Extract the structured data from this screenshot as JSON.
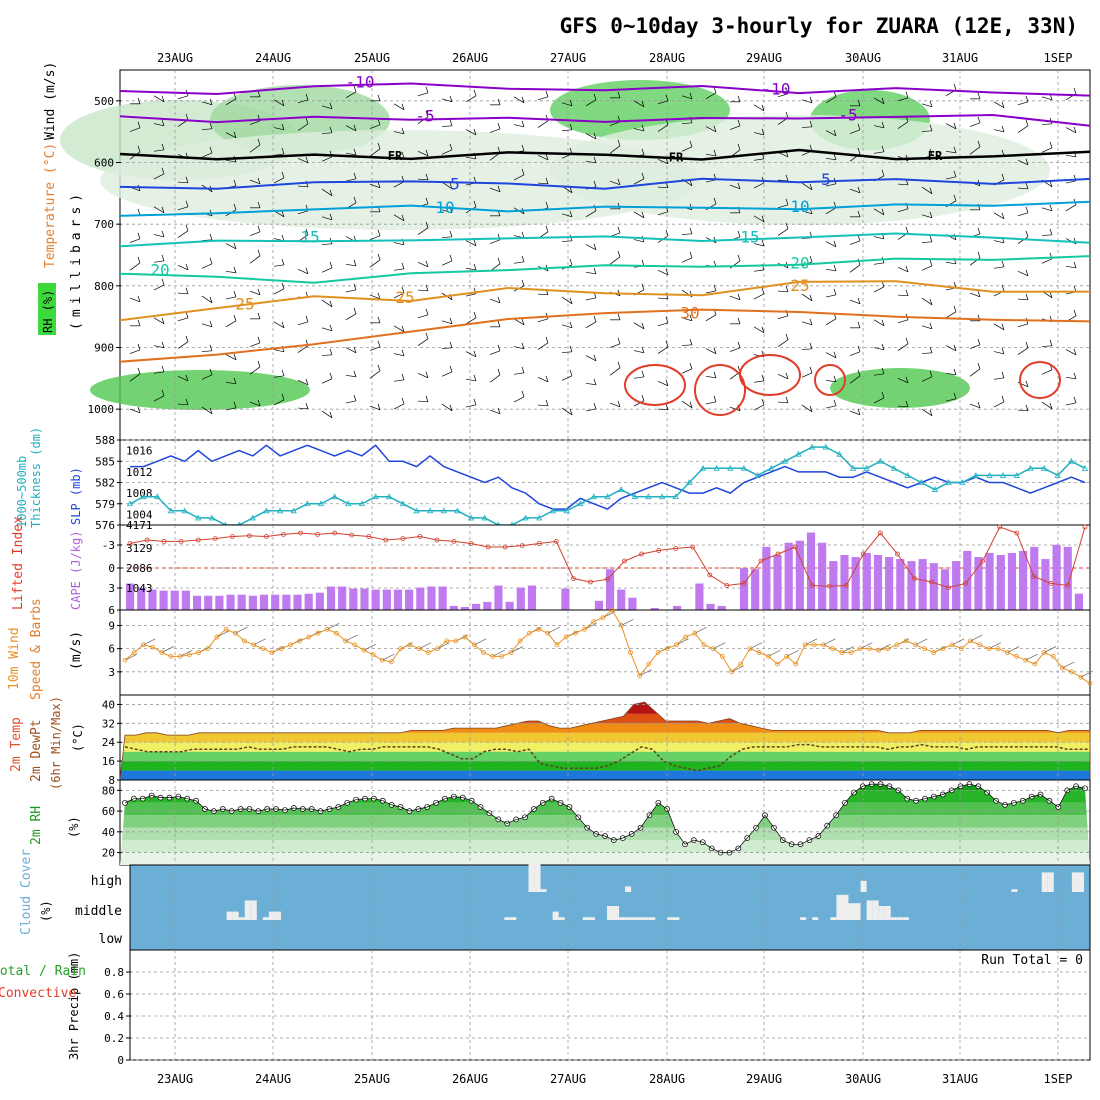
{
  "title": "GFS 0~10day 3-hourly for ZUARA (12E, 33N)",
  "date_labels": [
    "23AUG",
    "24AUG",
    "25AUG",
    "26AUG",
    "27AUG",
    "28AUG",
    "29AUG",
    "30AUG",
    "31AUG",
    "1SEP"
  ],
  "colors": {
    "purple": "#8a00c8",
    "blue": "#1e46dc",
    "cyan": "#00a0d8",
    "teal": "#14c8a0",
    "green": "#1eb46e",
    "orange": "#e08c14",
    "red": "#e03c28",
    "magenta": "#c0008c",
    "lime": "#3cd83c",
    "barviolet": "#c07af0",
    "cloudbg": "#6baed6",
    "rhgreen": "#28c828"
  },
  "chart_data": [
    {
      "id": "pressure-section",
      "type": "contour",
      "ylabel_parts": [
        "RH (%)",
        "Temperature (°C)",
        "Wind (m/s)"
      ],
      "ylabel_units": "(millibars)",
      "yticks": [
        500,
        600,
        700,
        800,
        900,
        1000
      ],
      "temp_levels": [
        {
          "label": "-10",
          "values": [
            480,
            485,
            470,
            478,
            482,
            480,
            476,
            482,
            476,
            480,
            485
          ]
        },
        {
          "label": "-5",
          "values": [
            522,
            528,
            520,
            525,
            533,
            530,
            522,
            528,
            524,
            526,
            540
          ]
        },
        {
          "label": "FR",
          "values": [
            590,
            592,
            592,
            588,
            590,
            590,
            590,
            586,
            588,
            588,
            588
          ]
        },
        {
          "label": "5",
          "values": [
            645,
            640,
            632,
            636,
            640,
            636,
            632,
            628,
            630,
            630,
            632
          ]
        },
        {
          "label": "10",
          "values": [
            680,
            678,
            676,
            674,
            676,
            676,
            674,
            672,
            672,
            670,
            670
          ]
        },
        {
          "label": "15",
          "values": [
            730,
            724,
            722,
            720,
            720,
            722,
            722,
            720,
            718,
            720,
            724
          ]
        },
        {
          "label": "20",
          "values": [
            775,
            780,
            790,
            786,
            770,
            770,
            768,
            764,
            760,
            758,
            758
          ]
        },
        {
          "label": "25",
          "values": [
            858,
            830,
            820,
            820,
            810,
            806,
            810,
            800,
            798,
            808,
            810
          ]
        },
        {
          "label": "30",
          "values": [
            920,
            910,
            900,
            880,
            860,
            845,
            845,
            845,
            845,
            850,
            860
          ]
        }
      ],
      "labels": {
        "-10": "-10",
        "-5": "-5",
        "FR": "FR",
        "5": "5",
        "10": "10",
        "15": "15",
        "20": "20",
        "25": "25",
        "30": "30"
      }
    },
    {
      "id": "thickness-slp",
      "type": "line",
      "ylabel_left": "Thickness (dm)",
      "ylabel_left_top": "1000~500mb",
      "ylabel_right": "SLP (mb)",
      "left_ticks": [
        576,
        579,
        582,
        585,
        588
      ],
      "right_ticks": [
        "1004",
        "1008",
        "1012",
        "1016"
      ],
      "slp": [
        1013,
        1013,
        1014,
        1015,
        1014,
        1016,
        1014,
        1015,
        1016,
        1015,
        1017,
        1015,
        1016,
        1017,
        1016,
        1015,
        1016,
        1015,
        1017,
        1014,
        1014,
        1013,
        1015,
        1013,
        1012,
        1011,
        1010,
        1011,
        1009,
        1008,
        1006,
        1005,
        1005,
        1007,
        1006,
        1005,
        1007,
        1008,
        1009,
        1010,
        1009,
        1008,
        1008,
        1009,
        1008,
        1010,
        1011,
        1012,
        1013,
        1012,
        1012,
        1012,
        1011,
        1011,
        1012,
        1011,
        1010,
        1009,
        1010,
        1011,
        1010,
        1010,
        1011,
        1010,
        1010,
        1009,
        1008,
        1009,
        1010,
        1011,
        1010
      ],
      "thickness": [
        579,
        580,
        580,
        578,
        578,
        577,
        577,
        576,
        576,
        577,
        578,
        578,
        578,
        579,
        579,
        580,
        579,
        579,
        580,
        580,
        579,
        578,
        578,
        578,
        578,
        577,
        577,
        576,
        576,
        577,
        577,
        578,
        578,
        579,
        580,
        580,
        581,
        580,
        580,
        580,
        580,
        582,
        584,
        584,
        584,
        584,
        583,
        584,
        585,
        586,
        587,
        587,
        586,
        584,
        584,
        585,
        584,
        583,
        582,
        581,
        582,
        582,
        583,
        583,
        583,
        583,
        584,
        584,
        583,
        585,
        584
      ],
      "thickness_color": "#20b0c0",
      "slp_color": "#1e46dc"
    },
    {
      "id": "li-cape",
      "type": "bar+line",
      "ylabel_left": "Lifted Index",
      "ylabel_right": "CAPE (J/kg)",
      "left_ticks": [
        "-3",
        "0",
        "3",
        "6"
      ],
      "right_ticks": [
        "1043",
        "2086",
        "3129",
        "4171"
      ],
      "cape": [
        1300,
        1100,
        1000,
        950,
        950,
        950,
        700,
        700,
        700,
        750,
        750,
        700,
        750,
        750,
        750,
        750,
        800,
        850,
        1150,
        1150,
        1050,
        1050,
        1000,
        1000,
        1000,
        1000,
        1100,
        1150,
        1150,
        200,
        150,
        300,
        400,
        1200,
        400,
        1100,
        1200,
        0,
        0,
        1050,
        0,
        0,
        450,
        2000,
        1000,
        600,
        0,
        100,
        0,
        200,
        0,
        1300,
        300,
        200,
        0,
        2050,
        2000,
        3100,
        2700,
        3300,
        3400,
        3800,
        3300,
        2400,
        2700,
        2600,
        2800,
        2700,
        2600,
        2500,
        2400,
        2500,
        2300,
        2000,
        2400,
        2900,
        2600,
        2800,
        2700,
        2800,
        2900,
        3100,
        2500,
        3200,
        3100,
        800
      ],
      "li": [
        -3.5,
        -4,
        -3.8,
        -3.8,
        -4,
        -4.2,
        -4.5,
        -4.6,
        -4.5,
        -4.8,
        -5,
        -4.8,
        -5,
        -4.7,
        -4.5,
        -4,
        -4.2,
        -4.5,
        -4,
        -3.8,
        -3.5,
        -3,
        -3,
        -3.2,
        -3.5,
        -3.8,
        1.5,
        2,
        1.6,
        -1,
        -2,
        -2.5,
        -2.8,
        -3,
        1,
        2.5,
        2.2,
        -1,
        -2,
        -3,
        2.5,
        2.6,
        2.5,
        -2,
        -5,
        -2,
        1.5,
        2,
        2.8,
        2.2,
        -1,
        -6,
        -5,
        1.2,
        2.2,
        2.5,
        -6
      ],
      "li_color": "#d04030",
      "cape_color": "#c07af0"
    },
    {
      "id": "wind10m",
      "type": "line",
      "ylabel": "10m Wind",
      "ylabel2": "Speed & Barbs",
      "units": "(m/s)",
      "ticks": [
        "3",
        "6",
        "9"
      ],
      "speed": [
        4.5,
        5.5,
        6.5,
        6.2,
        5.5,
        5,
        5,
        5.2,
        5.5,
        6,
        7.5,
        8.5,
        8,
        7,
        6.5,
        6,
        5.5,
        6,
        6.5,
        7,
        7.5,
        8,
        8.5,
        8,
        7,
        6.5,
        5.8,
        5.2,
        4.5,
        4.3,
        6,
        6.5,
        6,
        5.5,
        6,
        7,
        7,
        7.5,
        6.5,
        5.5,
        5,
        5,
        5.5,
        7,
        8,
        8.5,
        8,
        6.5,
        7.5,
        8,
        8.5,
        9.5,
        10,
        11,
        9,
        5.5,
        2.5,
        4,
        5.5,
        6,
        6.5,
        7.5,
        8,
        6.5,
        6,
        5,
        3,
        4,
        6,
        5.5,
        5,
        4,
        5,
        4,
        6.5,
        6.5,
        6.5,
        6,
        5.5,
        5.5,
        6,
        6,
        5.8,
        6,
        6.5,
        7,
        6.5,
        6,
        5.5,
        6,
        6.5,
        6,
        7,
        6.5,
        6,
        6,
        5.5,
        5,
        4.5,
        4,
        5.5,
        5,
        3.5,
        3,
        2.3,
        1.5
      ],
      "line_color": "#e89020"
    },
    {
      "id": "temp2m",
      "type": "area",
      "ylabel_parts": [
        "2m Temp",
        "2m DewPt",
        "(6hr Min/Max)"
      ],
      "units": "(°C)",
      "ticks": [
        "8",
        "16",
        "24",
        "32",
        "40"
      ],
      "temp": [
        27,
        27,
        28,
        28,
        27,
        27,
        27,
        28,
        28,
        28,
        28,
        28,
        28,
        28,
        28,
        28,
        28,
        28,
        28,
        28,
        28,
        28,
        28,
        28,
        28,
        28,
        28,
        29,
        29,
        29,
        29,
        30,
        30,
        30,
        30,
        30,
        31,
        32,
        33,
        33,
        31,
        30,
        30,
        31,
        32,
        33,
        34,
        35,
        40,
        41,
        37,
        33,
        33,
        33,
        33,
        32,
        33,
        34,
        32,
        31,
        30,
        29,
        29,
        29,
        29,
        29,
        29,
        29,
        29,
        29,
        29,
        29,
        28,
        28,
        28,
        29,
        29,
        29,
        29,
        29,
        29,
        29,
        29,
        29,
        29,
        29,
        29,
        29,
        28,
        29,
        29,
        29
      ],
      "dewpt": [
        22,
        21,
        20,
        20,
        20,
        20,
        21,
        21,
        21,
        21,
        21,
        22,
        21,
        21,
        21,
        22,
        22,
        22,
        22,
        21,
        20,
        21,
        21,
        22,
        22,
        22,
        22,
        22,
        21,
        19,
        17,
        17,
        20,
        21,
        21,
        20,
        21,
        15,
        14,
        13,
        13,
        13,
        13,
        14,
        16,
        19,
        22,
        21,
        16,
        14,
        13,
        12,
        13,
        14,
        18,
        21,
        22,
        22,
        22,
        22,
        23,
        23,
        22,
        22,
        22,
        22,
        22,
        22,
        21,
        22,
        22,
        23,
        22,
        22,
        22,
        21,
        22,
        22,
        22,
        22,
        22,
        22,
        22,
        22,
        21,
        21,
        21
      ]
    },
    {
      "id": "rh2m",
      "type": "area",
      "ylabel": "2m RH",
      "units": "(%)",
      "ticks": [
        "20",
        "40",
        "60",
        "80"
      ],
      "rh": [
        68,
        72,
        72,
        75,
        73,
        73,
        74,
        72,
        70,
        62,
        60,
        62,
        60,
        62,
        62,
        60,
        62,
        62,
        61,
        63,
        62,
        62,
        60,
        62,
        64,
        68,
        71,
        72,
        72,
        70,
        66,
        64,
        60,
        62,
        64,
        68,
        72,
        74,
        73,
        70,
        64,
        58,
        52,
        48,
        52,
        54,
        62,
        68,
        72,
        68,
        64,
        54,
        44,
        38,
        36,
        32,
        34,
        38,
        44,
        56,
        68,
        62,
        40,
        28,
        32,
        30,
        24,
        20,
        20,
        24,
        34,
        44,
        56,
        44,
        32,
        28,
        28,
        32,
        36,
        46,
        56,
        68,
        78,
        84,
        86,
        86,
        84,
        80,
        72,
        70,
        72,
        74,
        76,
        80,
        84,
        86,
        84,
        78,
        70,
        66,
        68,
        70,
        74,
        76,
        70,
        64,
        80,
        84,
        82
      ]
    },
    {
      "id": "cloud",
      "type": "bar",
      "ylabel": "Cloud Cover",
      "units": "(%)",
      "levels": [
        "high",
        "middle",
        "low"
      ],
      "high_cover": [
        0,
        0,
        0,
        0,
        0,
        0,
        0,
        0,
        0,
        0,
        0,
        0,
        0,
        0,
        0,
        0,
        0,
        0,
        0,
        0,
        0,
        0,
        0,
        0,
        0,
        0,
        0,
        0,
        0,
        0,
        0,
        0,
        0,
        0,
        0,
        0,
        0,
        0,
        0,
        0,
        0,
        0,
        0,
        0,
        0,
        0,
        0,
        0,
        0,
        0,
        0,
        0,
        0,
        0,
        0,
        0,
        0,
        0,
        0,
        0,
        0,
        0,
        0,
        0,
        0,
        0,
        1,
        1,
        0.1,
        0,
        0,
        0,
        0,
        0,
        0,
        0,
        0,
        0,
        0,
        0,
        0,
        0,
        0.2,
        0,
        0,
        0,
        0,
        0,
        0,
        0,
        0,
        0,
        0,
        0,
        0,
        0,
        0,
        0,
        0,
        0,
        0,
        0,
        0,
        0,
        0,
        0,
        0,
        0,
        0,
        0,
        0,
        0,
        0,
        0,
        0,
        0,
        0,
        0,
        0,
        0,
        0,
        0.4,
        0,
        0,
        0,
        0,
        0,
        0,
        0,
        0,
        0,
        0,
        0,
        0,
        0,
        0,
        0,
        0,
        0,
        0,
        0,
        0,
        0,
        0,
        0,
        0,
        0.1,
        0,
        0,
        0,
        0,
        0.7,
        0.7,
        0,
        0,
        0,
        0.7,
        0.7,
        0
      ],
      "mid_cover": [
        0,
        0,
        0,
        0,
        0,
        0,
        0,
        0,
        0,
        0,
        0,
        0,
        0,
        0,
        0,
        0,
        0.3,
        0.3,
        0.1,
        0.7,
        0.7,
        0,
        0.1,
        0.3,
        0.3,
        0,
        0,
        0,
        0,
        0,
        0,
        0,
        0,
        0,
        0,
        0,
        0,
        0,
        0,
        0,
        0,
        0,
        0,
        0,
        0,
        0,
        0,
        0,
        0,
        0,
        0,
        0,
        0,
        0,
        0,
        0,
        0,
        0,
        0,
        0,
        0,
        0,
        0.1,
        0.1,
        0,
        0,
        0,
        0,
        0,
        0,
        0.3,
        0.1,
        0,
        0,
        0,
        0.1,
        0.1,
        0,
        0,
        0.5,
        0.5,
        0.1,
        0.1,
        0.1,
        0.1,
        0.1,
        0.1,
        0,
        0,
        0.1,
        0.1,
        0,
        0,
        0,
        0,
        0,
        0,
        0,
        0,
        0,
        0,
        0,
        0,
        0,
        0,
        0,
        0,
        0,
        0,
        0,
        0,
        0.1,
        0,
        0.1,
        0,
        0,
        0.1,
        0.9,
        0.9,
        0.6,
        0.6,
        0,
        0.7,
        0.7,
        0.5,
        0.5,
        0.1,
        0.1,
        0.1
      ]
    },
    {
      "id": "precip",
      "type": "bar",
      "ylabel": "3hr Precip (mm)",
      "ylabel_left1": "Total / Rain",
      "ylabel_left2": "Convective",
      "ticks": [
        "0",
        "0.2",
        "0.4",
        "0.6",
        "0.8"
      ],
      "run_total": "Run Total = 0",
      "values": []
    }
  ]
}
